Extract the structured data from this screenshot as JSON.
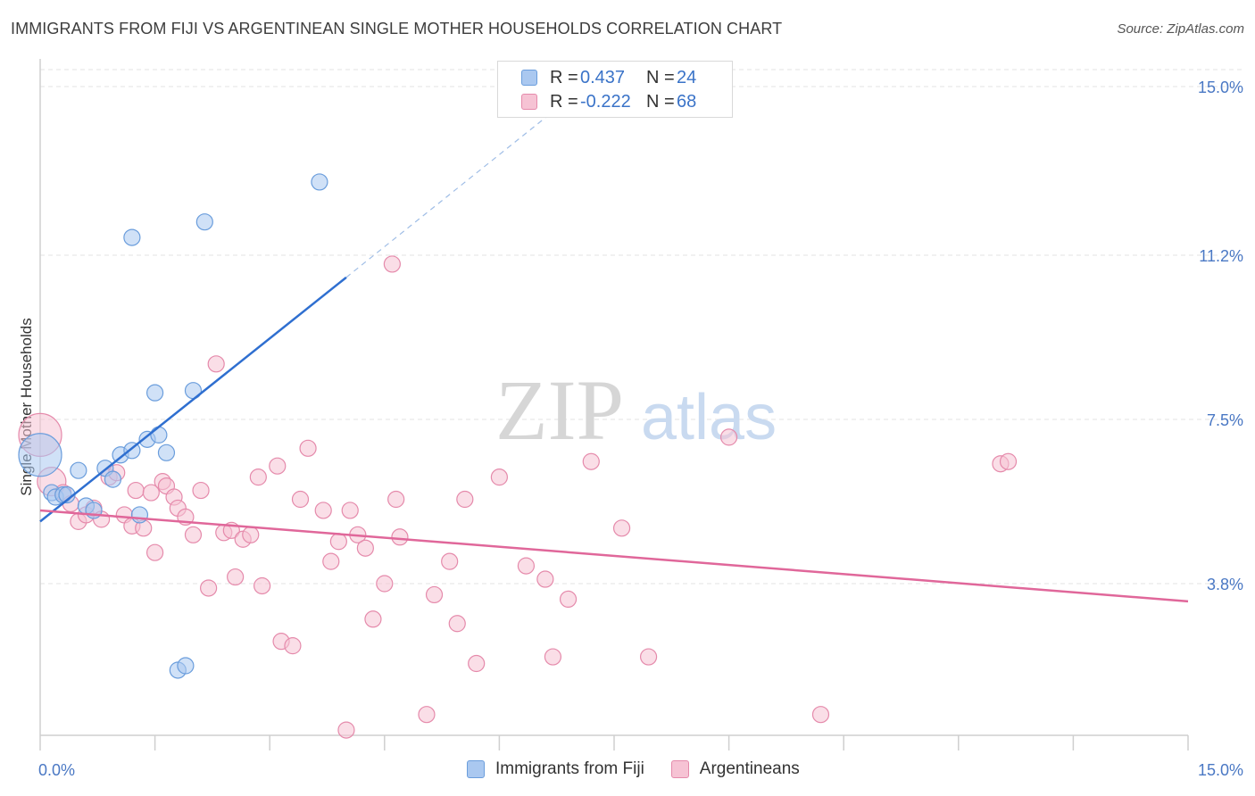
{
  "header": {
    "title": "IMMIGRANTS FROM FIJI VS ARGENTINEAN SINGLE MOTHER HOUSEHOLDS CORRELATION CHART",
    "source": "Source: ZipAtlas.com"
  },
  "watermark": {
    "zip": "ZIP",
    "atlas": "atlas"
  },
  "legend": {
    "fiji": {
      "r_label": "R =",
      "r_value": "0.437",
      "n_label": "N =",
      "n_value": "24"
    },
    "arg": {
      "r_label": "R =",
      "r_value": "-0.222",
      "n_label": "N =",
      "n_value": "68"
    }
  },
  "bottom_legend": {
    "fiji": "Immigrants from Fiji",
    "arg": "Argentineans"
  },
  "colors": {
    "fiji_fill": "#aac8f0",
    "fiji_stroke": "#6a9ddc",
    "fiji_line": "#2f6fd0",
    "arg_fill": "#f6c3d4",
    "arg_stroke": "#e58aab",
    "arg_line": "#e0679a",
    "tick_label": "#4a78c4",
    "grid": "#e3e3e3"
  },
  "chart_data": {
    "type": "scatter",
    "title": "IMMIGRANTS FROM FIJI VS ARGENTINEAN SINGLE MOTHER HOUSEHOLDS CORRELATION CHART",
    "xlabel": "",
    "ylabel": "Single Mother Households",
    "xlim": [
      0,
      15
    ],
    "ylim": [
      0,
      15.5
    ],
    "x_tick_labels": [
      "0.0%",
      "15.0%"
    ],
    "y_tick_values": [
      3.8,
      7.5,
      11.2,
      15.0
    ],
    "y_tick_labels": [
      "3.8%",
      "7.5%",
      "11.2%",
      "15.0%"
    ],
    "grid": "horizontal dashed",
    "legend_placement": "top-center",
    "series": [
      {
        "name": "Immigrants from Fiji",
        "points": [
          [
            0.0,
            6.7,
            "large"
          ],
          [
            0.15,
            5.85
          ],
          [
            0.2,
            5.75
          ],
          [
            0.3,
            5.8
          ],
          [
            0.35,
            5.8
          ],
          [
            0.5,
            6.35
          ],
          [
            0.6,
            5.55
          ],
          [
            0.7,
            5.45
          ],
          [
            0.85,
            6.4
          ],
          [
            0.95,
            6.15
          ],
          [
            1.05,
            6.7
          ],
          [
            1.2,
            6.8
          ],
          [
            1.3,
            5.35
          ],
          [
            1.4,
            7.05
          ],
          [
            1.5,
            8.1
          ],
          [
            1.55,
            7.15
          ],
          [
            1.65,
            6.75
          ],
          [
            1.8,
            1.85
          ],
          [
            1.9,
            1.95
          ],
          [
            2.0,
            8.15
          ],
          [
            2.15,
            11.95
          ],
          [
            1.2,
            11.6
          ],
          [
            3.65,
            12.85
          ]
        ],
        "trend": {
          "x0": 0.0,
          "y0": 5.2,
          "x1": 4.0,
          "y1": 10.7,
          "dashed_to_x": 7.0,
          "dashed_to_y": 14.85
        }
      },
      {
        "name": "Argentineans",
        "points": [
          [
            0.0,
            7.15,
            "large"
          ],
          [
            0.15,
            6.1,
            "medium"
          ],
          [
            0.3,
            5.85
          ],
          [
            0.4,
            5.6
          ],
          [
            0.5,
            5.2
          ],
          [
            0.6,
            5.35
          ],
          [
            0.7,
            5.5
          ],
          [
            0.8,
            5.25
          ],
          [
            0.9,
            6.2
          ],
          [
            1.0,
            6.3
          ],
          [
            1.1,
            5.35
          ],
          [
            1.2,
            5.1
          ],
          [
            1.25,
            5.9
          ],
          [
            1.35,
            5.05
          ],
          [
            1.45,
            5.85
          ],
          [
            1.5,
            4.5
          ],
          [
            1.6,
            6.1
          ],
          [
            1.65,
            6.0
          ],
          [
            1.75,
            5.75
          ],
          [
            1.8,
            5.5
          ],
          [
            1.9,
            5.3
          ],
          [
            2.0,
            4.9
          ],
          [
            2.1,
            5.9
          ],
          [
            2.2,
            3.7
          ],
          [
            2.3,
            8.75
          ],
          [
            2.4,
            4.95
          ],
          [
            2.5,
            5.0
          ],
          [
            2.55,
            3.95
          ],
          [
            2.65,
            4.8
          ],
          [
            2.75,
            4.9
          ],
          [
            2.85,
            6.2
          ],
          [
            2.9,
            3.75
          ],
          [
            3.1,
            6.45
          ],
          [
            3.15,
            2.5
          ],
          [
            3.3,
            2.4
          ],
          [
            3.4,
            5.7
          ],
          [
            3.5,
            6.85
          ],
          [
            3.7,
            5.45
          ],
          [
            3.8,
            4.3
          ],
          [
            3.9,
            4.75
          ],
          [
            4.0,
            0.5
          ],
          [
            4.05,
            5.45
          ],
          [
            4.15,
            4.9
          ],
          [
            4.25,
            4.6
          ],
          [
            4.35,
            3.0
          ],
          [
            4.5,
            3.8
          ],
          [
            4.6,
            11.0
          ],
          [
            4.65,
            5.7
          ],
          [
            4.7,
            4.85
          ],
          [
            5.05,
            0.85
          ],
          [
            5.15,
            3.55
          ],
          [
            5.35,
            4.3
          ],
          [
            5.45,
            2.9
          ],
          [
            5.55,
            5.7
          ],
          [
            5.7,
            2.0
          ],
          [
            6.0,
            6.2
          ],
          [
            6.35,
            4.2
          ],
          [
            6.6,
            3.9
          ],
          [
            6.7,
            2.15
          ],
          [
            6.9,
            3.45
          ],
          [
            7.2,
            6.55
          ],
          [
            7.6,
            5.05
          ],
          [
            7.95,
            2.15
          ],
          [
            9.0,
            7.1
          ],
          [
            10.2,
            0.85
          ],
          [
            12.55,
            6.5
          ],
          [
            12.65,
            6.55
          ]
        ],
        "trend": {
          "x0": 0.0,
          "y0": 5.45,
          "x1": 15.0,
          "y1": 3.4
        }
      }
    ]
  }
}
